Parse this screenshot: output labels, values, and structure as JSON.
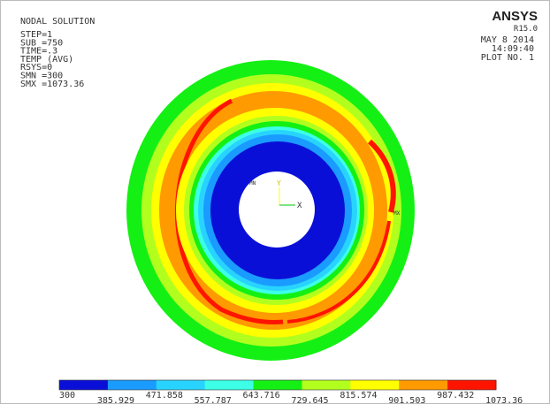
{
  "info": {
    "title": "NODAL SOLUTION",
    "lines": [
      "STEP=1",
      "SUB =750",
      "TIME=.3",
      "TEMP     (AVG)",
      "RSYS=0",
      "SMN =300",
      "SMX =1073.36"
    ]
  },
  "brand": {
    "name": "ANSYS",
    "version": "R15.0",
    "date": "MAY  8 2014",
    "time": "14:09:40",
    "plot": "PLOT NO.   1"
  },
  "triad": {
    "y": "Y",
    "x": "X",
    "mn": "MN",
    "mx": "MX"
  },
  "legend": {
    "labels": [
      "300",
      "385.929",
      "471.858",
      "557.787",
      "643.716",
      "729.645",
      "815.574",
      "901.503",
      "987.432",
      "1073.36"
    ],
    "colors": [
      "#0a0fd8",
      "#1a9bff",
      "#28d4ff",
      "#3cffe6",
      "#14f014",
      "#b2ff1e",
      "#ffff00",
      "#ff9a00",
      "#ff1400"
    ]
  }
}
